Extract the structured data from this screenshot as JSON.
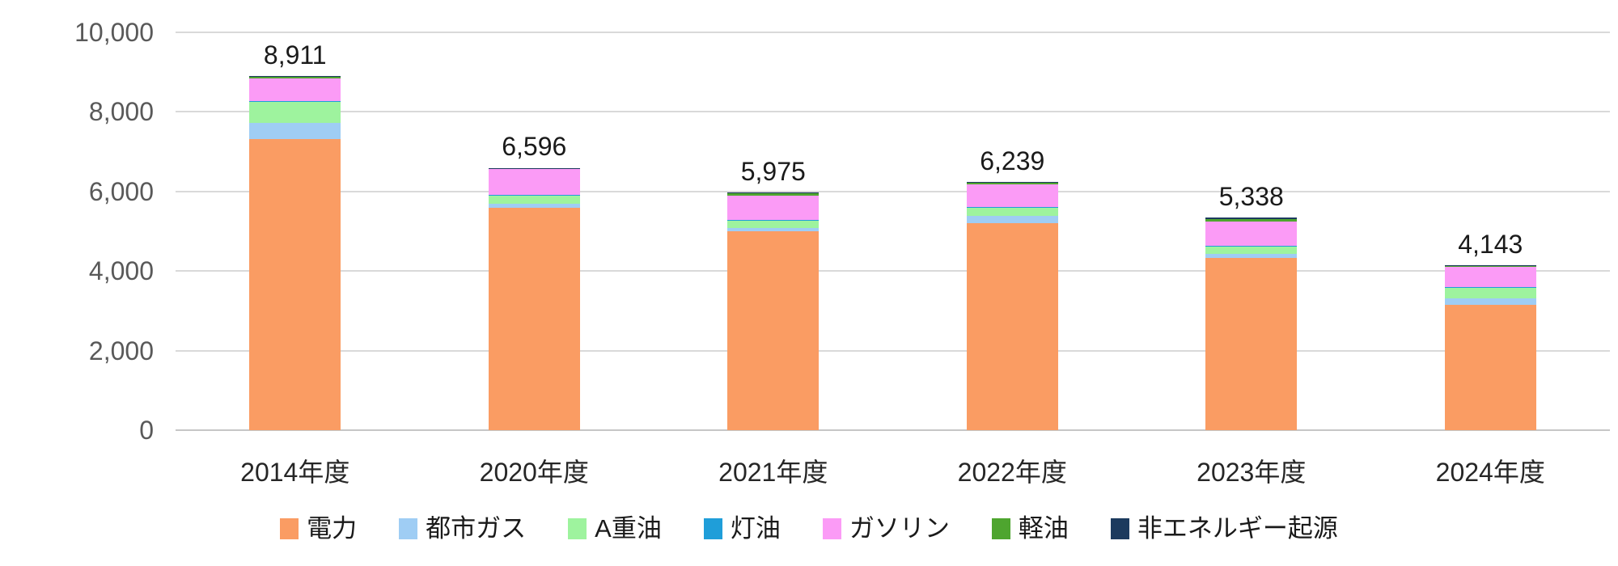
{
  "chart_data": {
    "type": "bar",
    "stacked": true,
    "title": "",
    "xlabel": "",
    "ylabel": "",
    "grid": true,
    "legend_position": "bottom",
    "categories": [
      "2014年度",
      "2020年度",
      "2021年度",
      "2022年度",
      "2023年度",
      "2024年度"
    ],
    "totals": [
      8911,
      6596,
      5975,
      6239,
      5338,
      4143
    ],
    "total_labels": [
      "8,911",
      "6,596",
      "5,975",
      "6,239",
      "5,338",
      "4,143"
    ],
    "y_axis": {
      "min": 0,
      "max": 10000,
      "step": 2000,
      "tick_labels": [
        "0",
        "2,000",
        "4,000",
        "6,000",
        "8,000",
        "10,000"
      ]
    },
    "series": [
      {
        "name": "電力",
        "slug": "electricity",
        "color": "#FA9C63",
        "values": [
          7310,
          5590,
          5000,
          5200,
          4320,
          3150
        ]
      },
      {
        "name": "都市ガス",
        "slug": "city-gas",
        "color": "#9FCDF4",
        "values": [
          410,
          100,
          80,
          185,
          105,
          165
        ]
      },
      {
        "name": "A重油",
        "slug": "heavy-oil-a",
        "color": "#9EF39E",
        "values": [
          550,
          225,
          205,
          225,
          210,
          265
        ]
      },
      {
        "name": "灯油",
        "slug": "kerosene",
        "color": "#1F9ED9",
        "values": [
          10,
          8,
          8,
          8,
          8,
          8
        ]
      },
      {
        "name": "ガソリン",
        "slug": "gasoline",
        "color": "#FB9BF6",
        "values": [
          561,
          640,
          600,
          561,
          600,
          520
        ]
      },
      {
        "name": "軽油",
        "slug": "diesel",
        "color": "#4EA52F",
        "values": [
          60,
          23,
          72,
          50,
          65,
          25
        ]
      },
      {
        "name": "非エネルギー起源",
        "slug": "non-energy",
        "color": "#1C3A5E",
        "values": [
          10,
          10,
          10,
          10,
          30,
          10
        ]
      }
    ],
    "colors": {
      "gridline": "#d9d9d9",
      "axis_line": "#c6c6c6",
      "y_tick_text": "#595959",
      "x_label_text": "#262626",
      "data_label_text": "#1a1a1a"
    }
  }
}
